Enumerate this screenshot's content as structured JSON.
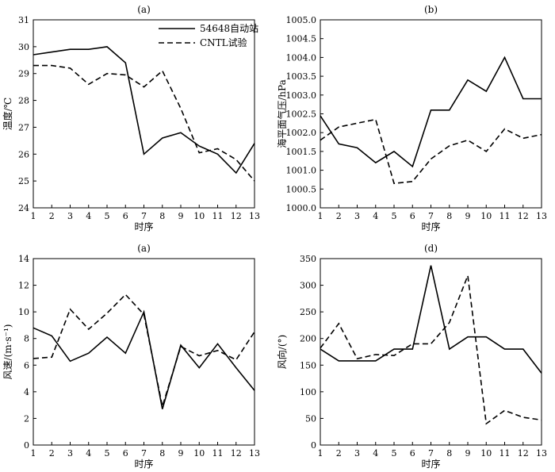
{
  "chart_data": [
    {
      "type": "line",
      "panel_label": "(a)",
      "xlabel": "时序",
      "ylabel": "温度/℃",
      "x": [
        1,
        2,
        3,
        4,
        5,
        6,
        7,
        8,
        9,
        10,
        11,
        12,
        13
      ],
      "xlim": [
        1,
        13
      ],
      "ylim": [
        24,
        31
      ],
      "yticks": [
        24,
        25,
        26,
        27,
        28,
        29,
        30,
        31
      ],
      "ytick_labels": [
        "24",
        "25",
        "26",
        "27",
        "28",
        "29",
        "30",
        "31"
      ],
      "legend": {
        "position": "top-right"
      },
      "series": [
        {
          "name": "54648自动站",
          "style": "solid",
          "values": [
            29.7,
            29.8,
            29.9,
            29.9,
            30.0,
            29.4,
            26.0,
            26.6,
            26.8,
            26.3,
            26.0,
            25.3,
            26.4
          ]
        },
        {
          "name": "CNTL试验",
          "style": "dashed",
          "values": [
            29.3,
            29.3,
            29.2,
            28.6,
            29.0,
            28.95,
            28.5,
            29.1,
            27.7,
            26.05,
            26.2,
            25.8,
            25.0
          ]
        }
      ]
    },
    {
      "type": "line",
      "panel_label": "(b)",
      "xlabel": "时序",
      "ylabel": "海平面气压/hPa",
      "x": [
        1,
        2,
        3,
        4,
        5,
        6,
        7,
        8,
        9,
        10,
        11,
        12,
        13
      ],
      "xlim": [
        1,
        13
      ],
      "ylim": [
        1000.0,
        1005.0
      ],
      "yticks": [
        1000.0,
        1000.5,
        1001.0,
        1001.5,
        1002.0,
        1002.5,
        1003.0,
        1003.5,
        1004.0,
        1004.5,
        1005.0
      ],
      "ytick_labels": [
        "1000.0",
        "1000.5",
        "1001.0",
        "1001.5",
        "1002.0",
        "1002.5",
        "1003.0",
        "1003.5",
        "1004.0",
        "1004.5",
        "1005.0"
      ],
      "series": [
        {
          "name": "54648自动站",
          "style": "solid",
          "values": [
            1002.45,
            1001.7,
            1001.6,
            1001.2,
            1001.5,
            1001.1,
            1002.6,
            1002.6,
            1003.4,
            1003.1,
            1004.0,
            1002.9,
            1002.9
          ]
        },
        {
          "name": "CNTL试验",
          "style": "dashed",
          "values": [
            1001.8,
            1002.15,
            1002.25,
            1002.35,
            1000.65,
            1000.7,
            1001.3,
            1001.65,
            1001.8,
            1001.5,
            1002.1,
            1001.85,
            1001.95
          ]
        }
      ]
    },
    {
      "type": "line",
      "panel_label": "(a)",
      "xlabel": "时序",
      "ylabel": "风速/(m·s⁻¹)",
      "x": [
        1,
        2,
        3,
        4,
        5,
        6,
        7,
        8,
        9,
        10,
        11,
        12,
        13
      ],
      "xlim": [
        1,
        13
      ],
      "ylim": [
        0,
        14
      ],
      "yticks": [
        0,
        2,
        4,
        6,
        8,
        10,
        12,
        14
      ],
      "ytick_labels": [
        "0",
        "2",
        "4",
        "6",
        "8",
        "10",
        "12",
        "14"
      ],
      "series": [
        {
          "name": "54648自动站",
          "style": "solid",
          "values": [
            8.8,
            8.2,
            6.3,
            6.9,
            8.1,
            6.9,
            10.0,
            2.7,
            7.5,
            5.8,
            7.6,
            5.8,
            4.1
          ]
        },
        {
          "name": "CNTL试验",
          "style": "dashed",
          "values": [
            6.5,
            6.6,
            10.2,
            8.7,
            9.9,
            11.3,
            9.8,
            2.9,
            7.4,
            6.7,
            7.1,
            6.4,
            8.5
          ]
        }
      ]
    },
    {
      "type": "line",
      "panel_label": "(d)",
      "xlabel": "时序",
      "ylabel": "风向/(°)",
      "x": [
        1,
        2,
        3,
        4,
        5,
        6,
        7,
        8,
        9,
        10,
        11,
        12,
        13
      ],
      "xlim": [
        1,
        13
      ],
      "ylim": [
        0,
        350
      ],
      "yticks": [
        0,
        50,
        100,
        150,
        200,
        250,
        300,
        350
      ],
      "ytick_labels": [
        "0",
        "50",
        "100",
        "150",
        "200",
        "250",
        "300",
        "350"
      ],
      "series": [
        {
          "name": "54648自动站",
          "style": "solid",
          "values": [
            180,
            158,
            158,
            158,
            180,
            180,
            337,
            180,
            203,
            203,
            180,
            180,
            135
          ]
        },
        {
          "name": "CNTL试验",
          "style": "dashed",
          "values": [
            182,
            228,
            162,
            170,
            168,
            190,
            190,
            230,
            318,
            40,
            65,
            52,
            47
          ]
        }
      ]
    }
  ]
}
